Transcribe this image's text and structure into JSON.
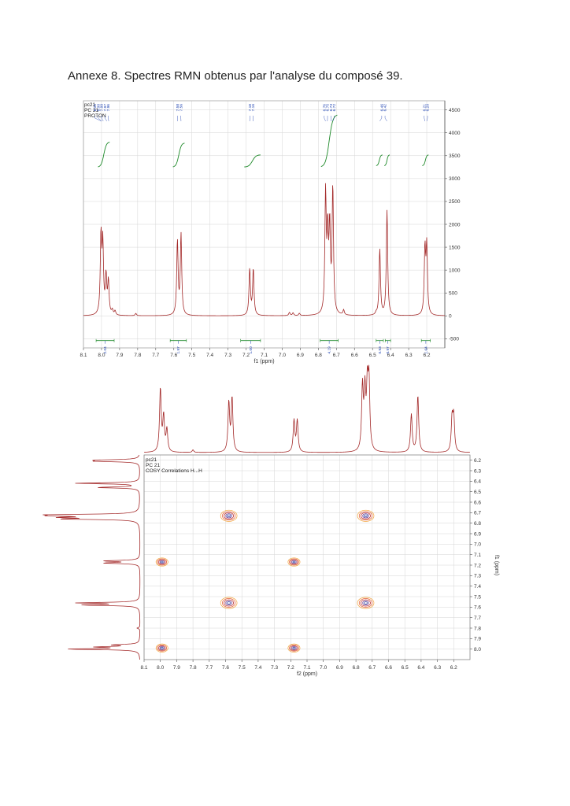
{
  "caption": "Annexe 8. Spectres RMN obtenus par l'analyse du composé 39.",
  "colors": {
    "spectrum": "#a32828",
    "integral": "#1f8a2a",
    "annotation": "#1a3fb0",
    "grid": "#d6d6d6"
  },
  "chart_data": [
    {
      "type": "line",
      "spectrum": "1H NMR",
      "info": [
        "pc21",
        "PC  21",
        "PROTON"
      ],
      "xlabel": "f1 (ppm)",
      "xlim": [
        8.1,
        6.1
      ],
      "xticks": [
        "8.1",
        "8.0",
        "7.9",
        "7.8",
        "7.7",
        "7.6",
        "7.5",
        "7.4",
        "7.3",
        "7.2",
        "7.1",
        "7.0",
        "6.9",
        "6.8",
        "6.7",
        "6.6",
        "6.5",
        "6.4",
        "6.3",
        "6.2"
      ],
      "ylim": [
        -700,
        4700
      ],
      "yticks": [
        "4500",
        "4000",
        "3500",
        "3000",
        "2500",
        "2000",
        "1500",
        "1000",
        "500",
        "0",
        "-500"
      ],
      "peaks": [
        {
          "x": 8.003,
          "y": 1700
        },
        {
          "x": 7.993,
          "y": 1500
        },
        {
          "x": 7.975,
          "y": 820
        },
        {
          "x": 7.962,
          "y": 720
        },
        {
          "x": 7.94,
          "y": 100
        },
        {
          "x": 7.925,
          "y": 90
        },
        {
          "x": 7.81,
          "y": 50
        },
        {
          "x": 7.58,
          "y": 1620
        },
        {
          "x": 7.56,
          "y": 1760
        },
        {
          "x": 7.18,
          "y": 1010
        },
        {
          "x": 7.16,
          "y": 1010
        },
        {
          "x": 6.96,
          "y": 70
        },
        {
          "x": 6.94,
          "y": 60
        },
        {
          "x": 6.905,
          "y": 50
        },
        {
          "x": 6.76,
          "y": 2600
        },
        {
          "x": 6.748,
          "y": 1650
        },
        {
          "x": 6.737,
          "y": 1800
        },
        {
          "x": 6.72,
          "y": 2750
        },
        {
          "x": 6.66,
          "y": 110
        },
        {
          "x": 6.48,
          "y": 40
        },
        {
          "x": 6.46,
          "y": 1450
        },
        {
          "x": 6.42,
          "y": 2300
        },
        {
          "x": 6.21,
          "y": 1420
        },
        {
          "x": 6.2,
          "y": 1470
        }
      ],
      "peak_labels": [
        {
          "group": 8.0,
          "labels": [
            "8.00",
            "8.00",
            "7.99",
            "7.97",
            "7.96"
          ]
        },
        {
          "group": 7.57,
          "labels": [
            "7.58",
            "7.56"
          ]
        },
        {
          "group": 7.17,
          "labels": [
            "7.18",
            "7.16"
          ]
        },
        {
          "group": 6.74,
          "labels": [
            "6.76",
            "6.75",
            "6.73",
            "6.72"
          ]
        },
        {
          "group": 6.44,
          "labels": [
            "6.46",
            "6.42"
          ]
        },
        {
          "group": 6.205,
          "labels": [
            "6.21",
            "6.20"
          ]
        }
      ],
      "integrations": [
        {
          "from": 8.03,
          "to": 7.93,
          "value": "2.04"
        },
        {
          "from": 7.62,
          "to": 7.53,
          "value": "1.97"
        },
        {
          "from": 7.23,
          "to": 7.12,
          "value": "1.00"
        },
        {
          "from": 6.79,
          "to": 6.69,
          "value": "4.19"
        },
        {
          "from": 6.48,
          "to": 6.44,
          "value": "0.93"
        },
        {
          "from": 6.43,
          "to": 6.4,
          "value": "0.97"
        },
        {
          "from": 6.23,
          "to": 6.18,
          "value": "1.04"
        }
      ]
    },
    {
      "type": "heatmap",
      "spectrum": "COSY",
      "info": [
        "pc21",
        "PC  21",
        "COSY Correlations H...H"
      ],
      "xlabel": "f2 (ppm)",
      "ylabel": "f1 (ppm)",
      "xlim": [
        8.1,
        6.1
      ],
      "ylim": [
        6.15,
        8.1
      ],
      "xticks": [
        "8.1",
        "8.0",
        "7.9",
        "7.8",
        "7.7",
        "7.6",
        "7.5",
        "7.4",
        "7.3",
        "7.2",
        "7.1",
        "7.0",
        "6.9",
        "6.8",
        "6.7",
        "6.6",
        "6.5",
        "6.4",
        "6.3",
        "6.2"
      ],
      "yticks": [
        "6.2",
        "6.3",
        "6.4",
        "6.5",
        "6.6",
        "6.7",
        "6.8",
        "6.9",
        "7.0",
        "7.1",
        "7.2",
        "7.3",
        "7.4",
        "7.5",
        "7.6",
        "7.7",
        "7.8",
        "7.9",
        "8.0"
      ],
      "cross_peaks": [
        {
          "f2": 7.58,
          "f1": 6.73
        },
        {
          "f2": 6.74,
          "f1": 6.73
        },
        {
          "f2": 7.99,
          "f1": 7.17
        },
        {
          "f2": 7.18,
          "f1": 7.17
        },
        {
          "f2": 7.58,
          "f1": 7.56
        },
        {
          "f2": 6.74,
          "f1": 7.56
        },
        {
          "f2": 7.99,
          "f1": 7.99
        },
        {
          "f2": 7.18,
          "f1": 7.99
        }
      ],
      "projection_peaks": [
        {
          "x": 8.0,
          "y": 1.0
        },
        {
          "x": 7.98,
          "y": 0.55
        },
        {
          "x": 7.96,
          "y": 0.35
        },
        {
          "x": 7.8,
          "y": 0.04
        },
        {
          "x": 7.58,
          "y": 0.78
        },
        {
          "x": 7.56,
          "y": 0.85
        },
        {
          "x": 7.18,
          "y": 0.5
        },
        {
          "x": 7.16,
          "y": 0.5
        },
        {
          "x": 6.76,
          "y": 1.0
        },
        {
          "x": 6.745,
          "y": 0.9
        },
        {
          "x": 6.73,
          "y": 0.95
        },
        {
          "x": 6.72,
          "y": 1.05
        },
        {
          "x": 6.46,
          "y": 0.6
        },
        {
          "x": 6.42,
          "y": 0.9
        },
        {
          "x": 6.21,
          "y": 0.52
        },
        {
          "x": 6.2,
          "y": 0.55
        }
      ]
    }
  ]
}
